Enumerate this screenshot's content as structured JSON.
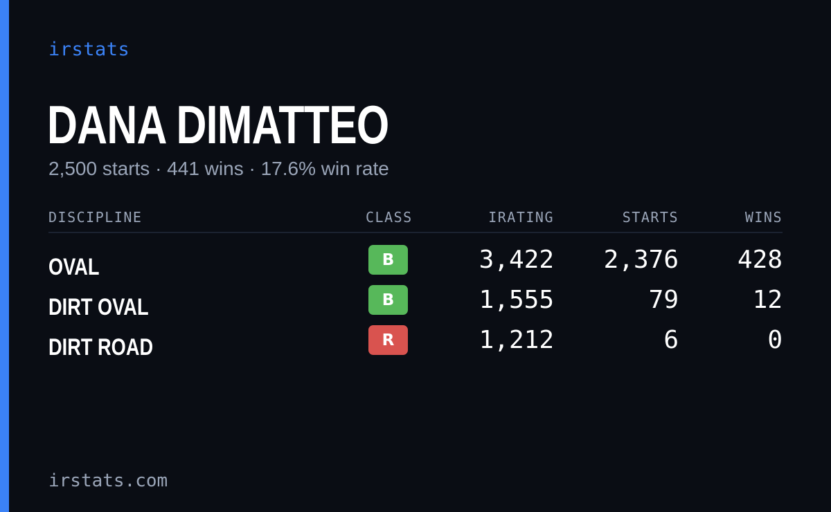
{
  "brand": "irstats",
  "driver": {
    "name": "DANA DIMATTEO",
    "summary": "2,500 starts · 441 wins · 17.6% win rate"
  },
  "table": {
    "headers": {
      "discipline": "DISCIPLINE",
      "class": "CLASS",
      "irating": "IRATING",
      "starts": "STARTS",
      "wins": "WINS"
    },
    "rows": [
      {
        "discipline": "OVAL",
        "class": "B",
        "class_color": "#57b85a",
        "irating": "3,422",
        "starts": "2,376",
        "wins": "428"
      },
      {
        "discipline": "DIRT OVAL",
        "class": "B",
        "class_color": "#57b85a",
        "irating": "1,555",
        "starts": "79",
        "wins": "12"
      },
      {
        "discipline": "DIRT ROAD",
        "class": "R",
        "class_color": "#d9534f",
        "irating": "1,212",
        "starts": "6",
        "wins": "0"
      }
    ]
  },
  "footer": {
    "url": "irstats.com"
  },
  "colors": {
    "accent": "#3b82f6",
    "background": "#0a0d14",
    "muted_text": "#9aa5b8"
  }
}
